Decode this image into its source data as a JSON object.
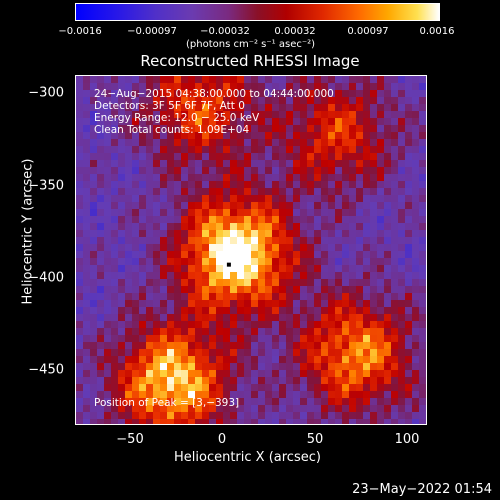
{
  "colorbar": {
    "tick_labels": [
      "−0.0016",
      "−0.00097",
      "−0.00032",
      "0.00032",
      "0.00097",
      "0.0016"
    ],
    "units": "(photons cm⁻² s⁻¹ asec⁻²)",
    "range": [
      -0.0016,
      0.0016
    ]
  },
  "chart_data": {
    "type": "heatmap",
    "title": "Reconstructed RHESSI Image",
    "xlabel": "Heliocentric X (arcsec)",
    "ylabel": "Heliocentric Y (arcsec)",
    "xlim": [
      -80,
      110
    ],
    "ylim": [
      -480,
      -290
    ],
    "x_ticks": [
      "−50",
      "0",
      "50",
      "100"
    ],
    "y_ticks": [
      "−300",
      "−350",
      "−400",
      "−450"
    ],
    "x_tick_values": [
      -50,
      0,
      50,
      100
    ],
    "y_tick_values": [
      -300,
      -350,
      -400,
      -450
    ],
    "colormap": "blue-purple-red-yellow-white",
    "annotations": [
      "24−Aug−2015 04:38:00.000 to 04:44:00.000",
      "Detectors: 3F 5F 6F 7F, Att 0",
      "Energy Range: 12.0 − 25.0 keV",
      "Clean     Total counts: 1.09E+04"
    ],
    "peak_label": "Position of Peak = [3,−393]",
    "peak": [
      3,
      -393
    ],
    "bright_regions": [
      {
        "x": 5,
        "y": -385,
        "level": 1.0
      },
      {
        "x": -30,
        "y": -455,
        "level": 0.85
      },
      {
        "x": 70,
        "y": -440,
        "level": 0.7
      },
      {
        "x": 60,
        "y": -320,
        "level": 0.5
      },
      {
        "x": -15,
        "y": -305,
        "level": 0.55
      }
    ]
  },
  "timestamp": "23−May−2022 01:54"
}
